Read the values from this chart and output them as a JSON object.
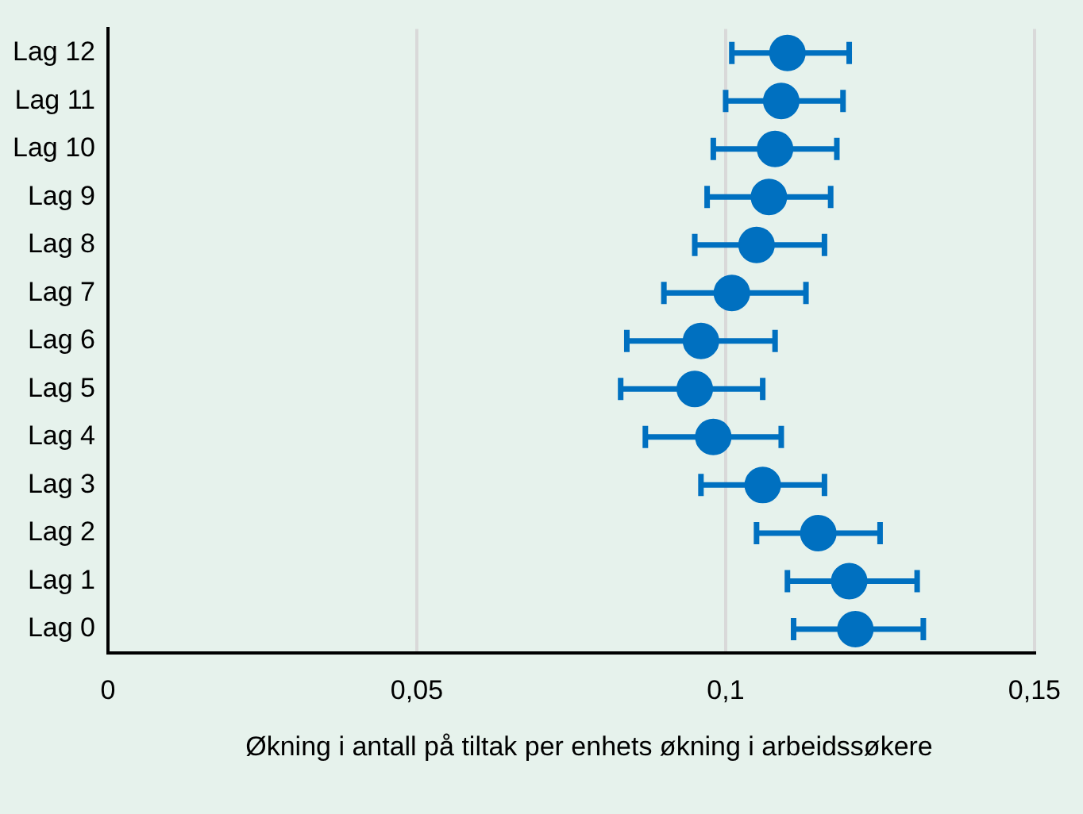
{
  "chart_data": {
    "type": "scatter",
    "orientation": "horizontal",
    "xlabel": "Økning i antall på tiltak per enhets økning i arbeidssøkere",
    "categories": [
      "Lag 12",
      "Lag 11",
      "Lag 10",
      "Lag 9",
      "Lag 8",
      "Lag 7",
      "Lag 6",
      "Lag 5",
      "Lag 4",
      "Lag 3",
      "Lag 2",
      "Lag 1",
      "Lag 0"
    ],
    "values": [
      0.11,
      0.109,
      0.108,
      0.107,
      0.105,
      0.101,
      0.096,
      0.095,
      0.098,
      0.106,
      0.115,
      0.12,
      0.121
    ],
    "errors": [
      [
        0.101,
        0.12
      ],
      [
        0.1,
        0.119
      ],
      [
        0.098,
        0.118
      ],
      [
        0.097,
        0.117
      ],
      [
        0.095,
        0.116
      ],
      [
        0.09,
        0.113
      ],
      [
        0.084,
        0.108
      ],
      [
        0.083,
        0.106
      ],
      [
        0.087,
        0.109
      ],
      [
        0.096,
        0.116
      ],
      [
        0.105,
        0.125
      ],
      [
        0.11,
        0.131
      ],
      [
        0.111,
        0.132
      ]
    ],
    "color": "#0070c0",
    "marker": "circle",
    "grid": "x",
    "xlim": [
      0,
      0.15
    ],
    "xticks": [
      0,
      {
        "value": 0.05,
        "label": "0,05"
      },
      {
        "value": 0.1,
        "label": "0,1"
      },
      {
        "value": 0.15,
        "label": "0,15"
      }
    ]
  }
}
